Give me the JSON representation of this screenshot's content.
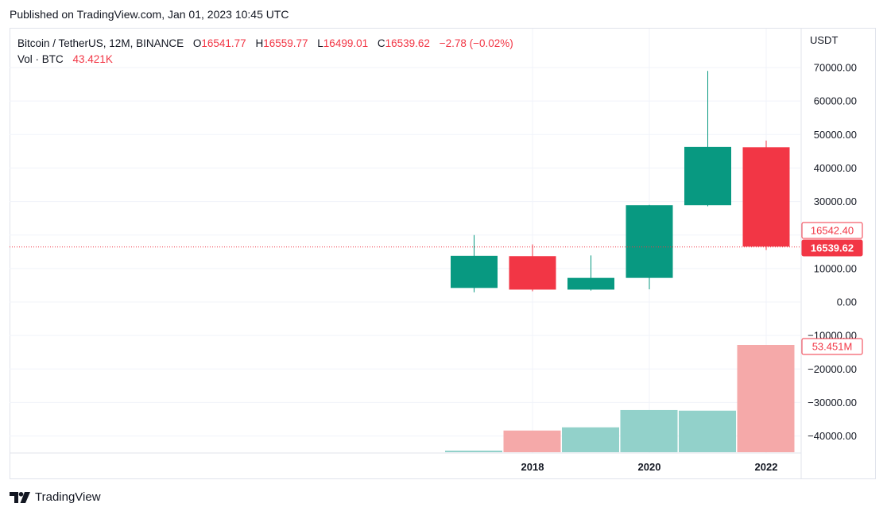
{
  "published": "Published on TradingView.com, Jan 01, 2023 10:45 UTC",
  "legend": {
    "symbol": "Bitcoin / TetherUS, 12M, BINANCE",
    "o_label": "O",
    "o_value": "16541.77",
    "h_label": "H",
    "h_value": "16559.77",
    "l_label": "L",
    "l_value": "16499.01",
    "c_label": "C",
    "c_value": "16539.62",
    "change": "−2.78 (−0.02%)",
    "vol_label": "Vol · BTC",
    "vol_value": "43.421K"
  },
  "colors": {
    "up": "#089981",
    "down": "#f23645",
    "vol_up": "#92d1ca",
    "vol_down": "#f5a9a9",
    "grid": "#f0f3fa"
  },
  "brand": {
    "name": "TradingView",
    "icon": "tradingview-logo-icon"
  },
  "chart_data": {
    "type": "candlestick",
    "price_unit": "USDT",
    "y_ticks": [
      "70000.00",
      "60000.00",
      "50000.00",
      "40000.00",
      "30000.00",
      "20000.00",
      "10000.00",
      "0.00",
      "−10000.00",
      "−20000.00",
      "−30000.00",
      "−40000.00"
    ],
    "y_tick_values": [
      70000,
      60000,
      50000,
      40000,
      30000,
      20000,
      10000,
      0,
      -10000,
      -20000,
      -30000,
      -40000
    ],
    "ylim": [
      -45000,
      77000
    ],
    "x_ticks": [
      "2018",
      "2020",
      "2022"
    ],
    "candles": [
      {
        "year": 2017,
        "open": 4200,
        "high": 20000,
        "low": 2900,
        "close": 13800
      },
      {
        "year": 2018,
        "open": 13700,
        "high": 17200,
        "low": 3200,
        "close": 3700
      },
      {
        "year": 2019,
        "open": 3700,
        "high": 13900,
        "low": 3400,
        "close": 7200
      },
      {
        "year": 2020,
        "open": 7200,
        "high": 29000,
        "low": 3800,
        "close": 28900
      },
      {
        "year": 2021,
        "open": 28900,
        "high": 69000,
        "low": 28600,
        "close": 46300
      },
      {
        "year": 2022,
        "open": 46200,
        "high": 48200,
        "low": 15500,
        "close": 16540
      }
    ],
    "volume": [
      {
        "year": 2017,
        "value_m": 0.8,
        "dir": "up"
      },
      {
        "year": 2018,
        "value_m": 10.8,
        "dir": "down"
      },
      {
        "year": 2019,
        "value_m": 12.4,
        "dir": "up"
      },
      {
        "year": 2020,
        "value_m": 21.0,
        "dir": "up"
      },
      {
        "year": 2021,
        "value_m": 20.7,
        "dir": "up"
      },
      {
        "year": 2022,
        "value_m": 53.451,
        "dir": "down"
      }
    ],
    "price_labels": [
      {
        "text": "16542.40",
        "value": 16542.4,
        "style": "outline"
      },
      {
        "text": "16539.62",
        "value": 16539.62,
        "style": "filled"
      }
    ],
    "volume_label": {
      "text": "53.451M",
      "value_m": 53.451
    }
  }
}
